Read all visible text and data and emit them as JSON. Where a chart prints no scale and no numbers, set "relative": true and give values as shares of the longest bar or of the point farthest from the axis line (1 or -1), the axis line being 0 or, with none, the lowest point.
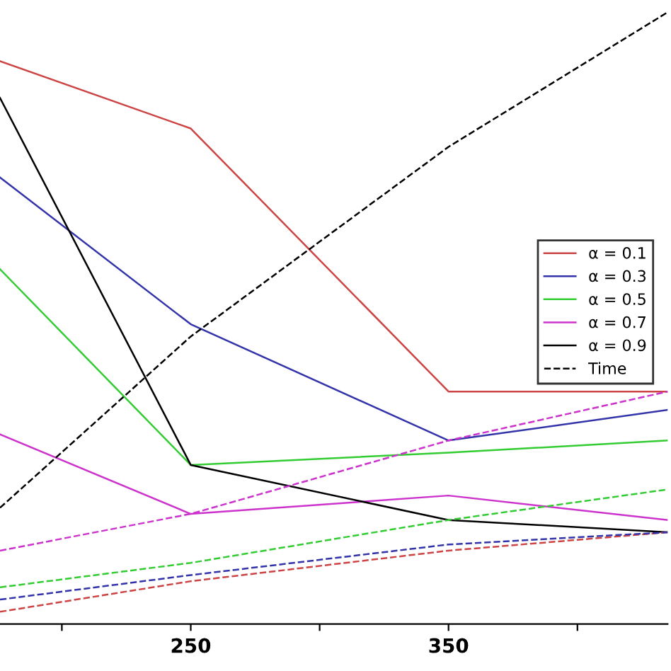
{
  "chart_data": {
    "type": "line",
    "relative": true,
    "x": [
      176,
      250,
      350,
      435
    ],
    "xlim": [
      176,
      435
    ],
    "xticks": [
      {
        "value": 200,
        "label": null
      },
      250,
      {
        "value": 300,
        "label": null
      },
      350,
      {
        "value": 400,
        "label": null
      }
    ],
    "legend": "center right",
    "grid": false,
    "marker": "none",
    "series": [
      {
        "name": "α = 0.1",
        "color": "#cc4444",
        "values": [
          0.92,
          0.81,
          0.38,
          0.38
        ],
        "line_style": "solid"
      },
      {
        "name": "α = 0.3",
        "color": "#3333aa",
        "values": [
          0.73,
          0.49,
          0.3,
          0.35
        ],
        "line_style": "solid"
      },
      {
        "name": "α = 0.5",
        "color": "#33cc33",
        "values": [
          0.58,
          0.26,
          0.28,
          0.3
        ],
        "line_style": "solid"
      },
      {
        "name": "α = 0.7",
        "color": "#cc33cc",
        "values": [
          0.31,
          0.18,
          0.21,
          0.17
        ],
        "line_style": "solid"
      },
      {
        "name": "α = 0.9",
        "color": "#000000",
        "values": [
          0.86,
          0.26,
          0.17,
          0.15
        ],
        "line_style": "solid"
      },
      {
        "name": "Time",
        "color": "#000000",
        "values": [
          0.19,
          0.47,
          0.78,
          1.0
        ],
        "line_style": "dashed"
      },
      {
        "color": "#cc4444",
        "values": [
          0.02,
          0.07,
          0.12,
          0.15
        ],
        "line_style": "dashed"
      },
      {
        "color": "#3333aa",
        "values": [
          0.04,
          0.08,
          0.13,
          0.15
        ],
        "line_style": "dashed"
      },
      {
        "color": "#33cc33",
        "values": [
          0.06,
          0.1,
          0.17,
          0.22
        ],
        "line_style": "dashed"
      },
      {
        "color": "#cc33cc",
        "values": [
          0.12,
          0.18,
          0.3,
          0.38
        ],
        "line_style": "dashed"
      }
    ]
  }
}
